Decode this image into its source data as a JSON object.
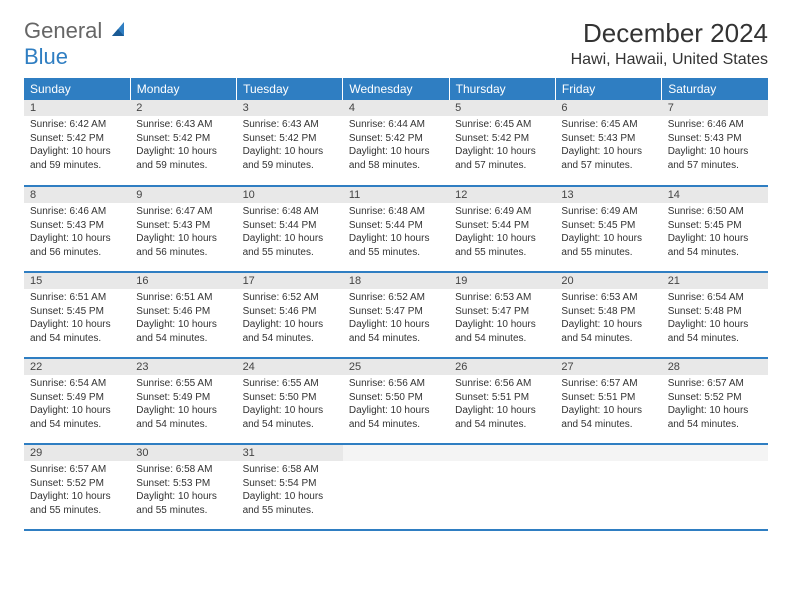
{
  "logo": {
    "general": "General",
    "blue": "Blue"
  },
  "header": {
    "month_title": "December 2024",
    "location": "Hawi, Hawaii, United States"
  },
  "colors": {
    "header_bg": "#2f7ec2",
    "header_text": "#ffffff",
    "daynum_bg": "#e8e8e8",
    "row_border": "#2f7ec2",
    "text": "#333333"
  },
  "weekdays": [
    "Sunday",
    "Monday",
    "Tuesday",
    "Wednesday",
    "Thursday",
    "Friday",
    "Saturday"
  ],
  "weeks": [
    [
      {
        "n": "1",
        "sr": "6:42 AM",
        "ss": "5:42 PM",
        "dl": "10 hours and 59 minutes."
      },
      {
        "n": "2",
        "sr": "6:43 AM",
        "ss": "5:42 PM",
        "dl": "10 hours and 59 minutes."
      },
      {
        "n": "3",
        "sr": "6:43 AM",
        "ss": "5:42 PM",
        "dl": "10 hours and 59 minutes."
      },
      {
        "n": "4",
        "sr": "6:44 AM",
        "ss": "5:42 PM",
        "dl": "10 hours and 58 minutes."
      },
      {
        "n": "5",
        "sr": "6:45 AM",
        "ss": "5:42 PM",
        "dl": "10 hours and 57 minutes."
      },
      {
        "n": "6",
        "sr": "6:45 AM",
        "ss": "5:43 PM",
        "dl": "10 hours and 57 minutes."
      },
      {
        "n": "7",
        "sr": "6:46 AM",
        "ss": "5:43 PM",
        "dl": "10 hours and 57 minutes."
      }
    ],
    [
      {
        "n": "8",
        "sr": "6:46 AM",
        "ss": "5:43 PM",
        "dl": "10 hours and 56 minutes."
      },
      {
        "n": "9",
        "sr": "6:47 AM",
        "ss": "5:43 PM",
        "dl": "10 hours and 56 minutes."
      },
      {
        "n": "10",
        "sr": "6:48 AM",
        "ss": "5:44 PM",
        "dl": "10 hours and 55 minutes."
      },
      {
        "n": "11",
        "sr": "6:48 AM",
        "ss": "5:44 PM",
        "dl": "10 hours and 55 minutes."
      },
      {
        "n": "12",
        "sr": "6:49 AM",
        "ss": "5:44 PM",
        "dl": "10 hours and 55 minutes."
      },
      {
        "n": "13",
        "sr": "6:49 AM",
        "ss": "5:45 PM",
        "dl": "10 hours and 55 minutes."
      },
      {
        "n": "14",
        "sr": "6:50 AM",
        "ss": "5:45 PM",
        "dl": "10 hours and 54 minutes."
      }
    ],
    [
      {
        "n": "15",
        "sr": "6:51 AM",
        "ss": "5:45 PM",
        "dl": "10 hours and 54 minutes."
      },
      {
        "n": "16",
        "sr": "6:51 AM",
        "ss": "5:46 PM",
        "dl": "10 hours and 54 minutes."
      },
      {
        "n": "17",
        "sr": "6:52 AM",
        "ss": "5:46 PM",
        "dl": "10 hours and 54 minutes."
      },
      {
        "n": "18",
        "sr": "6:52 AM",
        "ss": "5:47 PM",
        "dl": "10 hours and 54 minutes."
      },
      {
        "n": "19",
        "sr": "6:53 AM",
        "ss": "5:47 PM",
        "dl": "10 hours and 54 minutes."
      },
      {
        "n": "20",
        "sr": "6:53 AM",
        "ss": "5:48 PM",
        "dl": "10 hours and 54 minutes."
      },
      {
        "n": "21",
        "sr": "6:54 AM",
        "ss": "5:48 PM",
        "dl": "10 hours and 54 minutes."
      }
    ],
    [
      {
        "n": "22",
        "sr": "6:54 AM",
        "ss": "5:49 PM",
        "dl": "10 hours and 54 minutes."
      },
      {
        "n": "23",
        "sr": "6:55 AM",
        "ss": "5:49 PM",
        "dl": "10 hours and 54 minutes."
      },
      {
        "n": "24",
        "sr": "6:55 AM",
        "ss": "5:50 PM",
        "dl": "10 hours and 54 minutes."
      },
      {
        "n": "25",
        "sr": "6:56 AM",
        "ss": "5:50 PM",
        "dl": "10 hours and 54 minutes."
      },
      {
        "n": "26",
        "sr": "6:56 AM",
        "ss": "5:51 PM",
        "dl": "10 hours and 54 minutes."
      },
      {
        "n": "27",
        "sr": "6:57 AM",
        "ss": "5:51 PM",
        "dl": "10 hours and 54 minutes."
      },
      {
        "n": "28",
        "sr": "6:57 AM",
        "ss": "5:52 PM",
        "dl": "10 hours and 54 minutes."
      }
    ],
    [
      {
        "n": "29",
        "sr": "6:57 AM",
        "ss": "5:52 PM",
        "dl": "10 hours and 55 minutes."
      },
      {
        "n": "30",
        "sr": "6:58 AM",
        "ss": "5:53 PM",
        "dl": "10 hours and 55 minutes."
      },
      {
        "n": "31",
        "sr": "6:58 AM",
        "ss": "5:54 PM",
        "dl": "10 hours and 55 minutes."
      },
      {
        "empty": true
      },
      {
        "empty": true
      },
      {
        "empty": true
      },
      {
        "empty": true
      }
    ]
  ],
  "labels": {
    "sunrise": "Sunrise:",
    "sunset": "Sunset:",
    "daylight": "Daylight:"
  }
}
